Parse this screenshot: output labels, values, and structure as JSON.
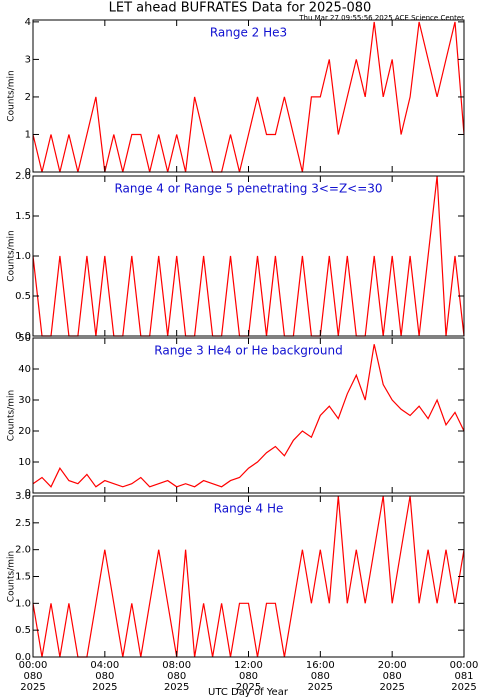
{
  "page": {
    "title": "LET ahead BUFRATES Data for 2025-080",
    "timestamp": "Thu Mar 27 09:55:56 2025 ACE Science Center",
    "xlabel": "UTC Day of Year"
  },
  "chart_data": [
    {
      "type": "line",
      "annotation": "Range 2 He3",
      "ylabel": "Counts/min",
      "color": "#ff0000",
      "xlim": [
        0,
        24
      ],
      "xticks": [
        0,
        4,
        8,
        12,
        16,
        20,
        24
      ],
      "ylim": [
        0,
        4.05
      ],
      "yticks": [
        0,
        1,
        2,
        3,
        4
      ],
      "x": [
        0,
        0.5,
        1,
        1.5,
        2,
        2.5,
        3,
        3.5,
        4,
        4.5,
        5,
        5.5,
        6,
        6.5,
        7,
        7.5,
        8,
        8.5,
        9,
        9.5,
        10,
        10.5,
        11,
        11.5,
        12,
        12.5,
        13,
        13.5,
        14,
        14.5,
        15,
        15.5,
        16,
        16.5,
        17,
        17.5,
        18,
        18.5,
        19,
        19.5,
        20,
        20.5,
        21,
        21.5,
        22,
        22.5,
        23,
        23.5,
        24
      ],
      "values": [
        1,
        0,
        1,
        0,
        1,
        0,
        1,
        2,
        0,
        1,
        0,
        1,
        1,
        0,
        1,
        0,
        1,
        0,
        2,
        1,
        0,
        0,
        1,
        0,
        1,
        2,
        1,
        1,
        2,
        1,
        0,
        2,
        2,
        3,
        1,
        2,
        3,
        2,
        4,
        2,
        3,
        1,
        2,
        4,
        3,
        2,
        3,
        4,
        1
      ]
    },
    {
      "type": "line",
      "annotation": "Range 4 or Range 5 penetrating 3<=Z<=30",
      "ylabel": "Counts/min",
      "color": "#ff0000",
      "xlim": [
        0,
        24
      ],
      "xticks": [
        0,
        4,
        8,
        12,
        16,
        20,
        24
      ],
      "ylim": [
        0,
        2
      ],
      "yticks": [
        {
          "value": 0,
          "label": "0.0"
        },
        {
          "value": 0.5,
          "label": "0.5"
        },
        {
          "value": 1,
          "label": "1.0"
        },
        {
          "value": 1.5,
          "label": "1.5"
        },
        {
          "value": 2,
          "label": "2.0"
        }
      ],
      "x": [
        0,
        0.5,
        1,
        1.5,
        2,
        2.5,
        3,
        3.5,
        4,
        4.5,
        5,
        5.5,
        6,
        6.5,
        7,
        7.5,
        8,
        8.5,
        9,
        9.5,
        10,
        10.5,
        11,
        11.5,
        12,
        12.5,
        13,
        13.5,
        14,
        14.5,
        15,
        15.5,
        16,
        16.5,
        17,
        17.5,
        18,
        18.5,
        19,
        19.5,
        20,
        20.5,
        21,
        21.5,
        22,
        22.5,
        23,
        23.5,
        24
      ],
      "values": [
        1,
        0,
        0,
        1,
        0,
        0,
        1,
        0,
        1,
        0,
        0,
        1,
        0,
        0,
        1,
        0,
        1,
        0,
        0,
        1,
        0,
        0,
        1,
        0,
        0,
        1,
        0,
        1,
        0,
        0,
        1,
        0,
        0,
        1,
        0,
        1,
        0,
        0,
        1,
        0,
        1,
        0,
        1,
        0,
        1,
        2,
        0,
        1,
        0
      ]
    },
    {
      "type": "line",
      "annotation": "Range 3 He4 or He background",
      "ylabel": "Counts/min",
      "color": "#ff0000",
      "xlim": [
        0,
        24
      ],
      "xticks": [
        0,
        4,
        8,
        12,
        16,
        20,
        24
      ],
      "ylim": [
        0,
        50
      ],
      "yticks": [
        0,
        10,
        20,
        30,
        40,
        50
      ],
      "x": [
        0,
        0.5,
        1,
        1.5,
        2,
        2.5,
        3,
        3.5,
        4,
        4.5,
        5,
        5.5,
        6,
        6.5,
        7,
        7.5,
        8,
        8.5,
        9,
        9.5,
        10,
        10.5,
        11,
        11.5,
        12,
        12.5,
        13,
        13.5,
        14,
        14.5,
        15,
        15.5,
        16,
        16.5,
        17,
        17.5,
        18,
        18.5,
        19,
        19.5,
        20,
        20.5,
        21,
        21.5,
        22,
        22.5,
        23,
        23.5,
        24
      ],
      "values": [
        3,
        5,
        2,
        8,
        4,
        3,
        6,
        2,
        4,
        3,
        2,
        3,
        5,
        2,
        3,
        4,
        2,
        3,
        2,
        4,
        3,
        2,
        4,
        5,
        8,
        10,
        13,
        15,
        12,
        17,
        20,
        18,
        25,
        28,
        24,
        32,
        38,
        30,
        48,
        35,
        30,
        27,
        25,
        28,
        24,
        30,
        22,
        26,
        20
      ]
    },
    {
      "type": "line",
      "annotation": "Range 4 He",
      "ylabel": "Counts/min",
      "color": "#ff0000",
      "xlim": [
        0,
        24
      ],
      "xticks": [
        {
          "value": 0,
          "label": "00:00"
        },
        {
          "value": 4,
          "label": "04:00"
        },
        {
          "value": 8,
          "label": "08:00"
        },
        {
          "value": 12,
          "label": "12:00"
        },
        {
          "value": 16,
          "label": "16:00"
        },
        {
          "value": 20,
          "label": "20:00"
        },
        {
          "value": 24,
          "label": "00:00"
        }
      ],
      "xtick_days": [
        "080",
        "080",
        "080",
        "080",
        "080",
        "080",
        "081"
      ],
      "xtick_years": [
        "2025",
        "2025",
        "2025",
        "2025",
        "2025",
        "2025",
        "2025"
      ],
      "ylim": [
        0,
        3
      ],
      "yticks": [
        {
          "value": 0,
          "label": "0.0"
        },
        {
          "value": 0.5,
          "label": "0.5"
        },
        {
          "value": 1,
          "label": "1.0"
        },
        {
          "value": 1.5,
          "label": "1.5"
        },
        {
          "value": 2,
          "label": "2.0"
        },
        {
          "value": 2.5,
          "label": "2.5"
        },
        {
          "value": 3,
          "label": "3.0"
        }
      ],
      "x": [
        0,
        0.5,
        1,
        1.5,
        2,
        2.5,
        3,
        3.5,
        4,
        4.5,
        5,
        5.5,
        6,
        6.5,
        7,
        7.5,
        8,
        8.5,
        9,
        9.5,
        10,
        10.5,
        11,
        11.5,
        12,
        12.5,
        13,
        13.5,
        14,
        14.5,
        15,
        15.5,
        16,
        16.5,
        17,
        17.5,
        18,
        18.5,
        19,
        19.5,
        20,
        20.5,
        21,
        21.5,
        22,
        22.5,
        23,
        23.5,
        24
      ],
      "values": [
        1,
        0,
        1,
        0,
        1,
        0,
        0,
        1,
        2,
        1,
        0,
        1,
        0,
        1,
        2,
        1,
        0,
        2,
        0,
        1,
        0,
        1,
        0,
        1,
        1,
        0,
        1,
        1,
        0,
        1,
        2,
        1,
        2,
        1,
        3,
        1,
        2,
        1,
        2,
        3,
        1,
        2,
        3,
        1,
        2,
        1,
        2,
        1,
        2
      ]
    }
  ]
}
